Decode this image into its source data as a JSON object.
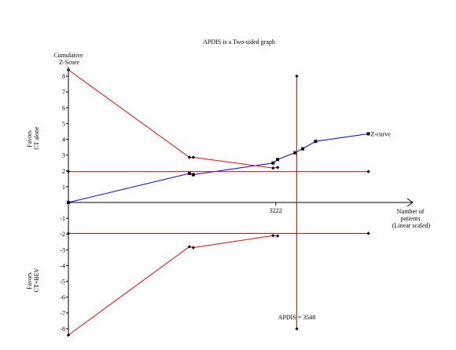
{
  "chart_data": {
    "type": "line",
    "title": "APDIS is a Two-sided graph",
    "ylabel_lines": [
      "Cumulative",
      "Z-Score"
    ],
    "xlabel_lines": [
      "Number of",
      "patients",
      "(Linear scaled)"
    ],
    "side_top_lines": [
      "Favors",
      "CT alone"
    ],
    "side_bottom_lines": [
      "Favors",
      "CT+BEV"
    ],
    "yticks": [
      8,
      7,
      6,
      5,
      4,
      3,
      2,
      1,
      -1,
      -2,
      -3,
      -4,
      -5,
      -6,
      -7,
      -8
    ],
    "ytick_labels": [
      "8",
      "7",
      "6",
      "5",
      "4",
      "3",
      "2",
      "1",
      "-1",
      "-2",
      "-3",
      "-4",
      "-5",
      "-6",
      "-7",
      "-8"
    ],
    "ylim": [
      -8.4,
      8.6
    ],
    "xlim": [
      0,
      4800
    ],
    "xticks": [
      3222
    ],
    "xtick_labels": [
      "3222"
    ],
    "apdis_x": 3548,
    "apdis_label": "APDIS = 3548",
    "conventional_boundary": 1.96,
    "colors": {
      "zcurve": "#0000ff",
      "boundary": "#ff0000",
      "axis": "#000000"
    },
    "series": [
      {
        "name": "Z-curve",
        "role": "zcurve",
        "marker": "square",
        "x": [
          0,
          1880,
          1940,
          3180,
          3250,
          3520,
          3640,
          3840,
          4660
        ],
        "y": [
          0,
          1.84,
          1.76,
          2.5,
          2.72,
          3.15,
          3.4,
          3.87,
          4.35
        ]
      },
      {
        "role": "upper_boundary",
        "marker": "diamond",
        "x": [
          0,
          1880,
          1940,
          3180,
          3250
        ],
        "y": [
          8.4,
          2.86,
          2.86,
          2.18,
          2.22
        ]
      },
      {
        "role": "lower_boundary",
        "marker": "diamond",
        "x": [
          0,
          1880,
          1940,
          3180,
          3250
        ],
        "y": [
          -8.4,
          -2.8,
          -2.86,
          -2.1,
          -2.12
        ]
      },
      {
        "role": "upper_conventional",
        "marker": "diamond",
        "x": [
          0,
          4660
        ],
        "y": [
          1.96,
          1.96
        ]
      },
      {
        "role": "lower_conventional",
        "marker": "diamond",
        "x": [
          0,
          4660
        ],
        "y": [
          -1.96,
          -1.96
        ]
      },
      {
        "role": "apdis_line",
        "marker": "diamond",
        "x": [
          3548,
          3548
        ],
        "y": [
          8,
          -8
        ]
      }
    ]
  }
}
